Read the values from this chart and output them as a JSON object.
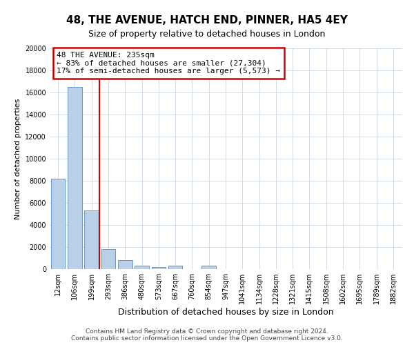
{
  "title": "48, THE AVENUE, HATCH END, PINNER, HA5 4EY",
  "subtitle": "Size of property relative to detached houses in London",
  "xlabel": "Distribution of detached houses by size in London",
  "ylabel": "Number of detached properties",
  "categories": [
    "12sqm",
    "106sqm",
    "199sqm",
    "293sqm",
    "386sqm",
    "480sqm",
    "573sqm",
    "667sqm",
    "760sqm",
    "854sqm",
    "947sqm",
    "1041sqm",
    "1134sqm",
    "1228sqm",
    "1321sqm",
    "1415sqm",
    "1508sqm",
    "1602sqm",
    "1695sqm",
    "1789sqm",
    "1882sqm"
  ],
  "values": [
    8200,
    16500,
    5300,
    1800,
    800,
    300,
    200,
    300,
    0,
    300,
    0,
    0,
    0,
    0,
    0,
    0,
    0,
    0,
    0,
    0,
    0
  ],
  "bar_color": "#b8d0e8",
  "bar_edge_color": "#6699cc",
  "annotation_line1": "48 THE AVENUE: 235sqm",
  "annotation_line2": "← 83% of detached houses are smaller (27,304)",
  "annotation_line3": "17% of semi-detached houses are larger (5,573) →",
  "vline_x_index": 2.45,
  "vline_color": "#cc0000",
  "annotation_box_color": "#ffffff",
  "annotation_box_edge_color": "#cc0000",
  "footer_line1": "Contains HM Land Registry data © Crown copyright and database right 2024.",
  "footer_line2": "Contains public sector information licensed under the Open Government Licence v3.0.",
  "ylim": [
    0,
    20000
  ],
  "yticks": [
    0,
    2000,
    4000,
    6000,
    8000,
    10000,
    12000,
    14000,
    16000,
    18000,
    20000
  ],
  "background_color": "#ffffff",
  "grid_color": "#c8d4e3",
  "title_fontsize": 11,
  "subtitle_fontsize": 9,
  "xlabel_fontsize": 9,
  "ylabel_fontsize": 8,
  "tick_fontsize": 7,
  "annotation_fontsize": 8,
  "footer_fontsize": 6.5
}
